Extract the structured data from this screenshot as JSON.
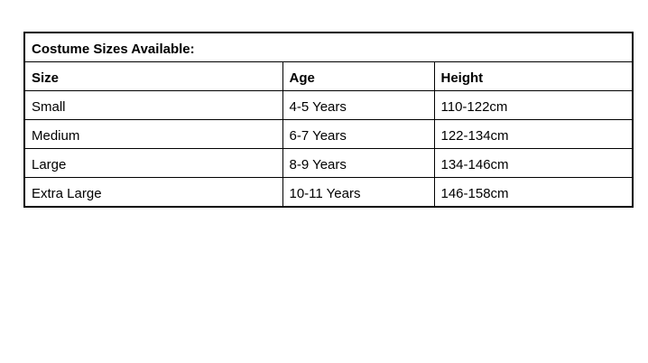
{
  "table": {
    "title": "Costume Sizes Available:",
    "columns": [
      "Size",
      "Age",
      "Height"
    ],
    "rows": [
      [
        "Small",
        "4-5 Years",
        "110-122cm"
      ],
      [
        "Medium",
        "6-7 Years",
        "122-134cm"
      ],
      [
        "Large",
        "8-9 Years",
        "134-146cm"
      ],
      [
        "Extra Large",
        "10-11 Years",
        "146-158cm"
      ]
    ],
    "colors": {
      "border": "#000000",
      "text": "#000000",
      "background": "#ffffff"
    }
  }
}
